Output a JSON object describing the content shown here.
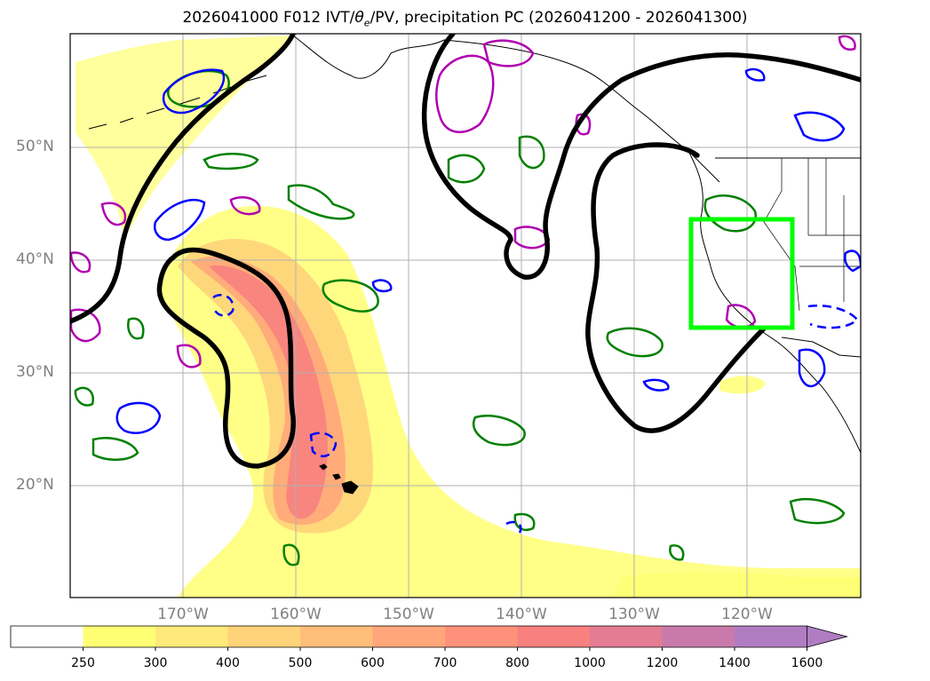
{
  "title": {
    "main": "2026041000 F012 IVT/",
    "theta_symbol": "θ",
    "theta_subscript": "e",
    "rest": "/PV, precipitation PC (2026041200 - 2026041300)"
  },
  "map": {
    "lon_range": [
      -180,
      -110
    ],
    "lat_range": [
      10,
      60
    ],
    "lat_labels": [
      "20°N",
      "30°N",
      "40°N",
      "50°N"
    ],
    "lon_labels": [
      "170°W",
      "160°W",
      "150°W",
      "140°W",
      "130°W",
      "120°W"
    ],
    "region_box": {
      "lon_min": -124.5,
      "lon_max": -115.5,
      "lat_min": 34,
      "lat_max": 43.5,
      "color": "#00ff00"
    }
  },
  "colorbar": {
    "levels": [
      "250",
      "300",
      "400",
      "500",
      "600",
      "700",
      "800",
      "1000",
      "1200",
      "1400",
      "1600"
    ],
    "colors": [
      "#ffff73",
      "#ffe97a",
      "#ffd37a",
      "#ffbd7a",
      "#ffa77a",
      "#ff917a",
      "#f8817f",
      "#e47c93",
      "#c97aab",
      "#b07dc3"
    ],
    "extend": "max"
  },
  "contour_colors": {
    "pv": "#000000",
    "theta_e_warm": "#0000ff",
    "precip_positive": "#008000",
    "precip_negative": "#b000b0",
    "ivt_low": "#ffff73",
    "ivt_mid": "#ffbd7a",
    "ivt_high": "#f8817f"
  }
}
